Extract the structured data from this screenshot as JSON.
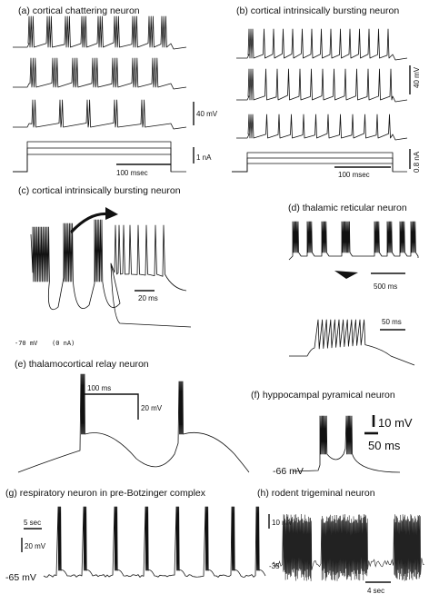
{
  "panels": {
    "a": {
      "title": "(a) cortical chattering neuron",
      "scale_v": "40 mV",
      "scale_i": "1 nA",
      "scale_t": "100 msec"
    },
    "b": {
      "title": "(b) cortical intrinsically bursting neuron",
      "scale_v": "40 mV",
      "scale_i": "0.8 nA",
      "scale_t": "100 msec"
    },
    "c": {
      "title": "(c) cortical intrinsically bursting neuron",
      "scale_t": "20 ms",
      "rest": "-70 mV",
      "current": "(0 nA)"
    },
    "d": {
      "title": "(d) thalamic reticular neuron",
      "scale_t1": "500 ms",
      "scale_t2": "50 ms"
    },
    "e": {
      "title": "(e) thalamocortical relay neuron",
      "scale_t": "100 ms",
      "scale_v": "20 mV"
    },
    "f": {
      "title": "(f) hyppocampal pyramical neuron",
      "scale_v": "10 mV",
      "scale_t": "50 ms",
      "rest": "-66 mV"
    },
    "g": {
      "title": "(g) respiratory neuron in pre-Botzinger complex",
      "scale_t": "5 sec",
      "scale_v": "20 mV",
      "rest": "-65 mV"
    },
    "h": {
      "title": "(h) rodent trigeminal neuron",
      "scale_v": "10 mV",
      "rest": "-35",
      "scale_t": "4 sec"
    }
  }
}
